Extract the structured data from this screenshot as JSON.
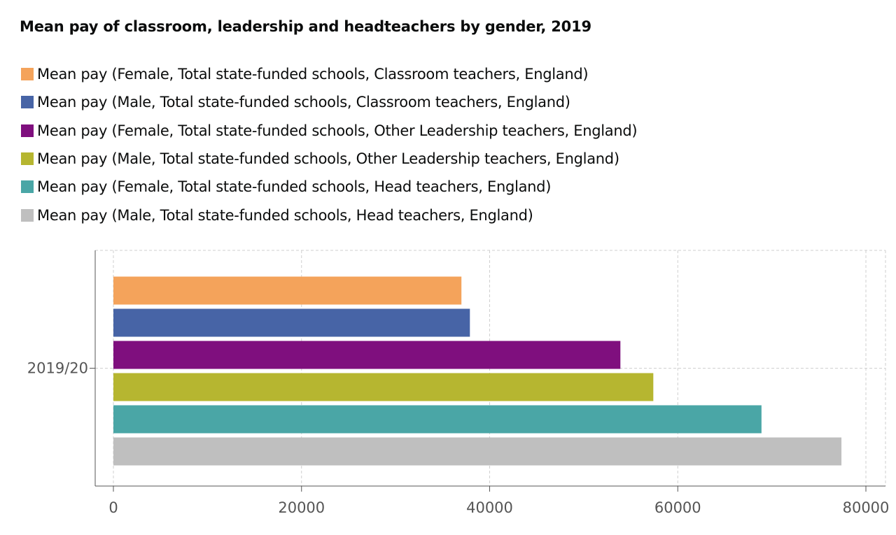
{
  "chart_data": {
    "type": "bar",
    "orientation": "horizontal",
    "title": "Mean pay of classroom, leadership and headteachers by gender, 2019",
    "categories": [
      "2019/20"
    ],
    "series": [
      {
        "name": "Mean pay (Female, Total state-funded schools, Classroom teachers, England)",
        "color": "#f4a35b",
        "values": [
          37000
        ]
      },
      {
        "name": "Mean pay (Male, Total state-funded schools, Classroom teachers, England)",
        "color": "#4764a6",
        "values": [
          37900
        ]
      },
      {
        "name": "Mean pay (Female, Total state-funded schools, Other Leadership teachers, England)",
        "color": "#7f0f7e",
        "values": [
          53900
        ]
      },
      {
        "name": "Mean pay (Male, Total state-funded schools, Other Leadership teachers, England)",
        "color": "#b6b630",
        "values": [
          57400
        ]
      },
      {
        "name": "Mean pay (Female, Total state-funded schools, Head teachers, England)",
        "color": "#4aa6a6",
        "values": [
          68900
        ]
      },
      {
        "name": "Mean pay (Male, Total state-funded schools, Head teachers, England)",
        "color": "#bfbfbf",
        "values": [
          77400
        ]
      }
    ],
    "x_ticks": [
      0,
      20000,
      40000,
      60000,
      80000
    ],
    "xlim": [
      0,
      80000
    ],
    "xlabel": "",
    "ylabel": "",
    "grid": true,
    "legend_position": "top"
  }
}
